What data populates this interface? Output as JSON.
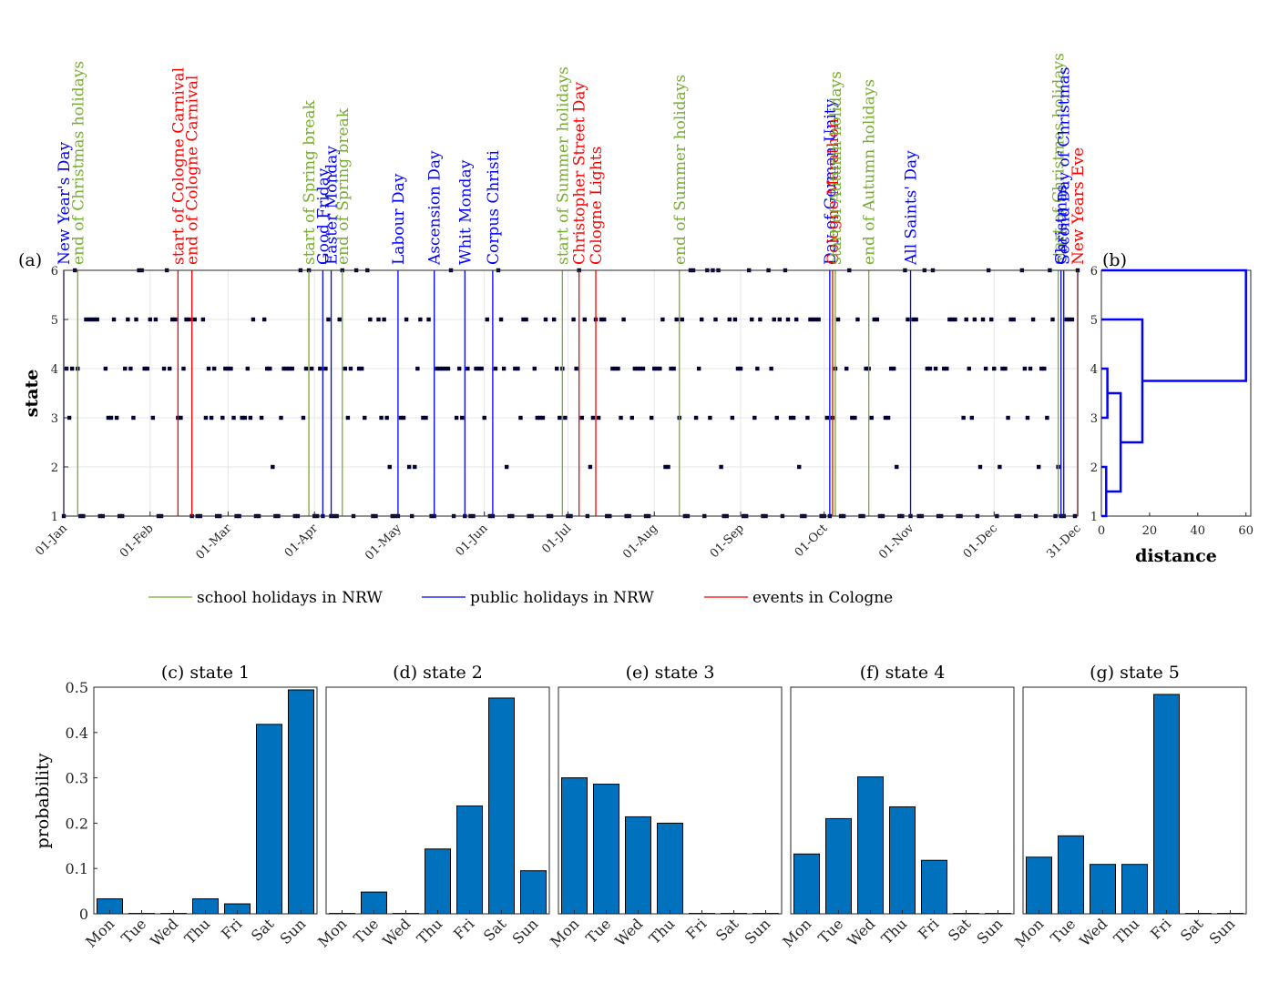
{
  "colors": {
    "school": "#77AC30",
    "public": "#0000FF",
    "events": "#FF0000",
    "bar": "#0072BD",
    "points": "#000033",
    "dendro": "#0000FF",
    "grid": "#E6E6E6"
  },
  "panel_a": {
    "panel_label": "(a)",
    "ylabel": "state",
    "y_ticks": [
      "1",
      "2",
      "3",
      "4",
      "5",
      "6"
    ],
    "x_ticks": [
      "01-Jan",
      "01-Feb",
      "01-Mar",
      "01-Apr",
      "01-May",
      "01-Jun",
      "01-Jul",
      "01-Aug",
      "01-Sep",
      "01-Oct",
      "01-Nov",
      "01-Dec",
      "31-Dec"
    ],
    "x_tick_days": [
      1,
      32,
      60,
      91,
      121,
      152,
      182,
      213,
      244,
      274,
      305,
      335,
      365
    ],
    "events": [
      {
        "day": 1,
        "label": "New Year's Day",
        "kind": "public"
      },
      {
        "day": 6,
        "label": "end of Christmas holidays",
        "kind": "school"
      },
      {
        "day": 42,
        "label": "start of Cologne Carnival",
        "kind": "events"
      },
      {
        "day": 47,
        "label": "end of Cologne Carnival",
        "kind": "events"
      },
      {
        "day": 89,
        "label": "start of Spring break",
        "kind": "school"
      },
      {
        "day": 94,
        "label": "Good Friday",
        "kind": "public"
      },
      {
        "day": 97,
        "label": "Easter Monday",
        "kind": "public"
      },
      {
        "day": 101,
        "label": "end of Spring break",
        "kind": "school"
      },
      {
        "day": 121,
        "label": "Labour Day",
        "kind": "public"
      },
      {
        "day": 134,
        "label": "Ascension Day",
        "kind": "public"
      },
      {
        "day": 145,
        "label": "Whit Monday",
        "kind": "public"
      },
      {
        "day": 155,
        "label": "Corpus Christi",
        "kind": "public"
      },
      {
        "day": 180,
        "label": "start of Summer holidays",
        "kind": "school"
      },
      {
        "day": 186,
        "label": "Christopher Street Day",
        "kind": "events"
      },
      {
        "day": 192,
        "label": "Cologne Lights",
        "kind": "events"
      },
      {
        "day": 222,
        "label": "end of Summer holidays",
        "kind": "school"
      },
      {
        "day": 276,
        "label": "Day of German Unity",
        "kind": "public"
      },
      {
        "day": 277,
        "label": "Cologne Marathon",
        "kind": "events"
      },
      {
        "day": 278,
        "label": "start of Autumn holidays",
        "kind": "school"
      },
      {
        "day": 290,
        "label": "end of Autumn holidays",
        "kind": "school"
      },
      {
        "day": 305,
        "label": "All Saints' Day",
        "kind": "public"
      },
      {
        "day": 358,
        "label": "start of Christmas holidays",
        "kind": "school"
      },
      {
        "day": 359,
        "label": "Christmas",
        "kind": "public"
      },
      {
        "day": 360,
        "label": "Second Day of Christmas",
        "kind": "public"
      },
      {
        "day": 365,
        "label": "New Years Eve",
        "kind": "events"
      }
    ],
    "legend": [
      {
        "kind": "school",
        "label": "school holidays in NRW"
      },
      {
        "kind": "public",
        "label": "public holidays in NRW"
      },
      {
        "kind": "events",
        "label": "events in Cologne"
      }
    ]
  },
  "panel_b": {
    "panel_label": "(b)",
    "xlabel": "distance",
    "x_ticks": [
      "0",
      "20",
      "40",
      "60"
    ],
    "y_ticks": [
      "1",
      "2",
      "3",
      "4",
      "5",
      "6"
    ]
  },
  "chart_data": [
    {
      "type": "scatter",
      "ylabel": "state",
      "xlim": [
        "01-Jan",
        "31-Dec"
      ],
      "ylim": [
        1,
        6
      ],
      "states": [
        1,
        2,
        3,
        4,
        5,
        6
      ],
      "grid": true,
      "legend_position": "bottom"
    },
    {
      "type": "dendrogram",
      "xlabel": "distance",
      "xlim": [
        0,
        62
      ],
      "leaves": [
        1,
        2,
        3,
        4,
        5,
        6
      ],
      "merges": [
        {
          "a": "1",
          "b": "2",
          "distance": 2
        },
        {
          "a": "3",
          "b": "4",
          "distance": 2.5
        },
        {
          "a": "3-4",
          "b": "1-2",
          "distance": 8
        },
        {
          "a": "1-4",
          "b": "5",
          "distance": 17
        },
        {
          "a": "1-5",
          "b": "6",
          "distance": 60
        }
      ]
    },
    {
      "type": "bar",
      "title": "(c) state 1",
      "ylabel": "probability",
      "ylim": [
        0,
        0.5
      ],
      "categories": [
        "Mon",
        "Tue",
        "Wed",
        "Thu",
        "Fri",
        "Sat",
        "Sun"
      ],
      "values": [
        0.033,
        0.001,
        0.001,
        0.033,
        0.022,
        0.418,
        0.494
      ]
    },
    {
      "type": "bar",
      "title": "(d) state 2",
      "ylim": [
        0,
        0.5
      ],
      "categories": [
        "Mon",
        "Tue",
        "Wed",
        "Thu",
        "Fri",
        "Sat",
        "Sun"
      ],
      "values": [
        0.001,
        0.048,
        0.001,
        0.143,
        0.238,
        0.476,
        0.095
      ]
    },
    {
      "type": "bar",
      "title": "(e) state 3",
      "ylim": [
        0,
        0.5
      ],
      "categories": [
        "Mon",
        "Tue",
        "Wed",
        "Thu",
        "Fri",
        "Sat",
        "Sun"
      ],
      "values": [
        0.3,
        0.286,
        0.214,
        0.2,
        0.001,
        0.001,
        0.001
      ]
    },
    {
      "type": "bar",
      "title": "(f) state 4",
      "ylim": [
        0,
        0.5
      ],
      "categories": [
        "Mon",
        "Tue",
        "Wed",
        "Thu",
        "Fri",
        "Sat",
        "Sun"
      ],
      "values": [
        0.132,
        0.21,
        0.302,
        0.236,
        0.118,
        0.001,
        0.001
      ]
    },
    {
      "type": "bar",
      "title": "(g) state 5",
      "ylim": [
        0,
        0.5
      ],
      "categories": [
        "Mon",
        "Tue",
        "Wed",
        "Thu",
        "Fri",
        "Sat",
        "Sun"
      ],
      "values": [
        0.125,
        0.172,
        0.109,
        0.109,
        0.484,
        0.001,
        0.001
      ]
    }
  ],
  "bar_y_ticks": [
    "0",
    "0.1",
    "0.2",
    "0.3",
    "0.4",
    "0.5"
  ]
}
